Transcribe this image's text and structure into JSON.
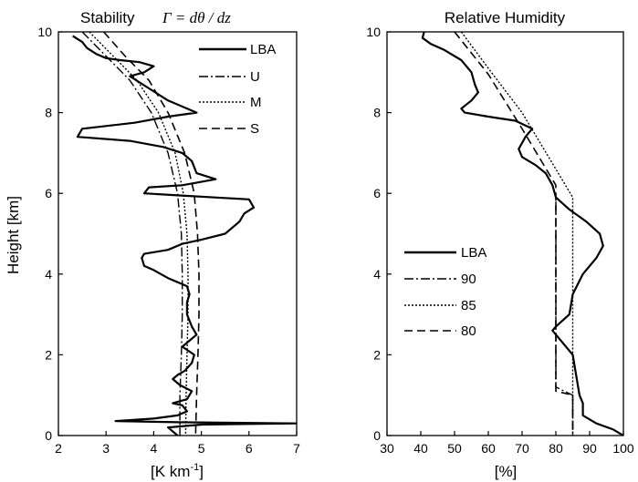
{
  "chart_data": [
    {
      "type": "line",
      "title": "Stability",
      "title_formula": "Γ = dθ / dz",
      "xlabel": "[K km",
      "xlabel_sup": "-1",
      "xlabel_close": "]",
      "ylabel": "Height [km]",
      "xlim": [
        2,
        7
      ],
      "ylim": [
        0,
        10
      ],
      "x_ticks": [
        "2",
        "3",
        "4",
        "5",
        "6",
        "7"
      ],
      "y_ticks": [
        "0",
        "2",
        "4",
        "6",
        "8",
        "10"
      ],
      "grid": false,
      "legend": "top-right",
      "series": [
        {
          "name": "LBA",
          "style": "solid",
          "points": [
            [
              2.3,
              9.9
            ],
            [
              2.5,
              9.75
            ],
            [
              2.6,
              9.6
            ],
            [
              2.8,
              9.45
            ],
            [
              3.0,
              9.35
            ],
            [
              3.3,
              9.3
            ],
            [
              3.7,
              9.25
            ],
            [
              4.0,
              9.15
            ],
            [
              3.8,
              9.0
            ],
            [
              3.5,
              8.9
            ],
            [
              3.9,
              8.6
            ],
            [
              4.3,
              8.3
            ],
            [
              4.9,
              8.0
            ],
            [
              4.3,
              7.9
            ],
            [
              3.6,
              7.75
            ],
            [
              2.5,
              7.6
            ],
            [
              2.4,
              7.4
            ],
            [
              3.5,
              7.3
            ],
            [
              4.2,
              7.15
            ],
            [
              4.6,
              7.0
            ],
            [
              4.8,
              6.8
            ],
            [
              4.9,
              6.5
            ],
            [
              5.3,
              6.35
            ],
            [
              4.6,
              6.2
            ],
            [
              3.9,
              6.15
            ],
            [
              3.8,
              6.0
            ],
            [
              4.5,
              5.95
            ],
            [
              6.0,
              5.85
            ],
            [
              6.1,
              5.65
            ],
            [
              5.9,
              5.5
            ],
            [
              5.8,
              5.3
            ],
            [
              5.5,
              5.0
            ],
            [
              5.0,
              4.85
            ],
            [
              4.6,
              4.75
            ],
            [
              4.3,
              4.6
            ],
            [
              3.8,
              4.5
            ],
            [
              3.75,
              4.4
            ],
            [
              3.8,
              4.2
            ],
            [
              4.0,
              4.1
            ],
            [
              4.3,
              3.9
            ],
            [
              4.6,
              3.75
            ],
            [
              4.7,
              3.7
            ],
            [
              4.75,
              3.5
            ],
            [
              4.7,
              3.3
            ],
            [
              4.7,
              3.0
            ],
            [
              4.8,
              2.7
            ],
            [
              4.9,
              2.5
            ],
            [
              4.7,
              2.3
            ],
            [
              4.6,
              2.2
            ],
            [
              4.85,
              2.0
            ],
            [
              4.8,
              1.8
            ],
            [
              4.65,
              1.6
            ],
            [
              4.5,
              1.5
            ],
            [
              4.4,
              1.4
            ],
            [
              4.55,
              1.25
            ],
            [
              4.8,
              1.1
            ],
            [
              4.7,
              0.9
            ],
            [
              4.4,
              0.8
            ],
            [
              4.6,
              0.75
            ],
            [
              4.7,
              0.6
            ],
            [
              4.5,
              0.5
            ],
            [
              4.0,
              0.42
            ],
            [
              3.2,
              0.36
            ],
            [
              4.5,
              0.33
            ],
            [
              7.0,
              0.3
            ],
            [
              5.0,
              0.27
            ],
            [
              4.3,
              0.2
            ],
            [
              4.5,
              0.0
            ]
          ]
        },
        {
          "name": "U",
          "style": "dashdot",
          "points": [
            [
              2.5,
              10.0
            ],
            [
              3.0,
              9.4
            ],
            [
              3.5,
              8.8
            ],
            [
              3.95,
              8.0
            ],
            [
              4.3,
              7.0
            ],
            [
              4.5,
              6.0
            ],
            [
              4.58,
              5.0
            ],
            [
              4.6,
              4.0
            ],
            [
              4.6,
              3.0
            ],
            [
              4.58,
              2.0
            ],
            [
              4.55,
              1.0
            ],
            [
              4.55,
              0.0
            ]
          ]
        },
        {
          "name": "M",
          "style": "dotted",
          "points": [
            [
              2.65,
              10.0
            ],
            [
              3.15,
              9.4
            ],
            [
              3.65,
              8.8
            ],
            [
              4.1,
              8.0
            ],
            [
              4.45,
              7.0
            ],
            [
              4.62,
              6.0
            ],
            [
              4.7,
              5.0
            ],
            [
              4.72,
              4.0
            ],
            [
              4.72,
              3.0
            ],
            [
              4.7,
              2.0
            ],
            [
              4.68,
              1.0
            ],
            [
              4.67,
              0.0
            ]
          ]
        },
        {
          "name": "S",
          "style": "dashed",
          "points": [
            [
              2.95,
              10.0
            ],
            [
              3.4,
              9.4
            ],
            [
              3.9,
              8.8
            ],
            [
              4.3,
              8.0
            ],
            [
              4.65,
              7.0
            ],
            [
              4.85,
              6.0
            ],
            [
              4.92,
              5.0
            ],
            [
              4.95,
              4.0
            ],
            [
              4.95,
              3.0
            ],
            [
              4.93,
              2.0
            ],
            [
              4.9,
              1.0
            ],
            [
              4.88,
              0.0
            ]
          ]
        }
      ]
    },
    {
      "type": "line",
      "title": "Relative Humidity",
      "xlabel": "[%]",
      "xlim": [
        30,
        100
      ],
      "ylim": [
        0,
        10
      ],
      "x_ticks": [
        "30",
        "40",
        "50",
        "60",
        "70",
        "80",
        "90",
        "100"
      ],
      "y_ticks": [
        "0",
        "2",
        "4",
        "6",
        "8",
        "10"
      ],
      "grid": false,
      "legend": "center-left",
      "series": [
        {
          "name": "LBA",
          "style": "solid",
          "points": [
            [
              41,
              10.0
            ],
            [
              40.5,
              9.85
            ],
            [
              43,
              9.7
            ],
            [
              47,
              9.55
            ],
            [
              52,
              9.3
            ],
            [
              55,
              9.0
            ],
            [
              56,
              8.7
            ],
            [
              57,
              8.5
            ],
            [
              55,
              8.3
            ],
            [
              52,
              8.1
            ],
            [
              53,
              8.0
            ],
            [
              60,
              7.9
            ],
            [
              68,
              7.8
            ],
            [
              73,
              7.6
            ],
            [
              71,
              7.4
            ],
            [
              69,
              7.1
            ],
            [
              70,
              6.9
            ],
            [
              74,
              6.7
            ],
            [
              77,
              6.5
            ],
            [
              79,
              6.2
            ],
            [
              80,
              5.9
            ],
            [
              84,
              5.6
            ],
            [
              89,
              5.3
            ],
            [
              93,
              5.0
            ],
            [
              94,
              4.7
            ],
            [
              92,
              4.4
            ],
            [
              88,
              4.0
            ],
            [
              85,
              3.5
            ],
            [
              84,
              3.0
            ],
            [
              80,
              2.7
            ],
            [
              79,
              2.6
            ],
            [
              82,
              2.3
            ],
            [
              85,
              2.0
            ],
            [
              86,
              1.5
            ],
            [
              87,
              1.0
            ],
            [
              88,
              0.8
            ],
            [
              88,
              0.5
            ],
            [
              92,
              0.3
            ],
            [
              97,
              0.15
            ],
            [
              100,
              0.0
            ]
          ]
        },
        {
          "name": "90",
          "style": "dashdot",
          "points": [
            [
              80,
              5.8
            ],
            [
              80,
              1.2
            ],
            [
              85,
              1.0
            ],
            [
              85,
              0.0
            ]
          ]
        },
        {
          "name": "85",
          "style": "dotted",
          "points": [
            [
              52,
              10.0
            ],
            [
              60,
              9.1
            ],
            [
              70,
              8.0
            ],
            [
              80,
              6.6
            ],
            [
              85,
              5.9
            ],
            [
              85,
              0.0
            ]
          ]
        },
        {
          "name": "80",
          "style": "dashed",
          "points": [
            [
              50,
              10.0
            ],
            [
              60,
              8.95
            ],
            [
              70,
              7.6
            ],
            [
              80,
              6.2
            ],
            [
              80,
              1.1
            ],
            [
              85,
              1.0
            ],
            [
              85,
              0.0
            ]
          ]
        }
      ]
    }
  ]
}
